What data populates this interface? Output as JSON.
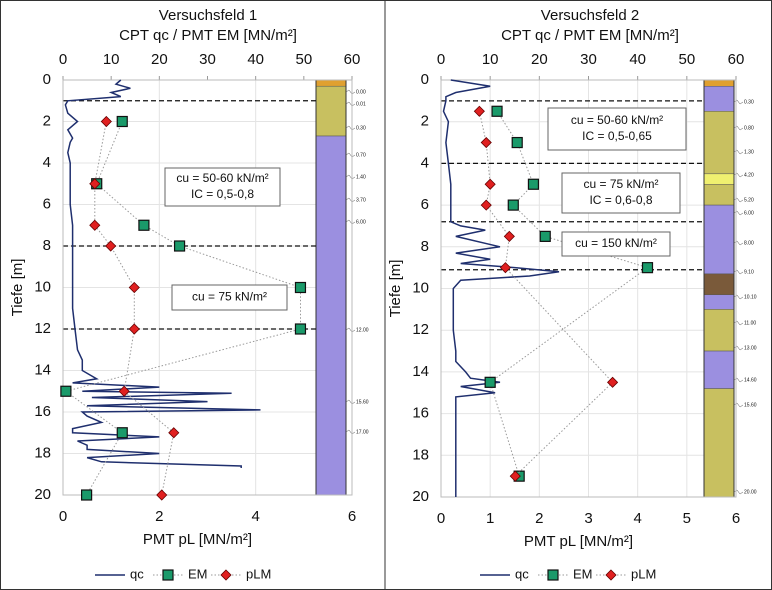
{
  "chart_data": [
    {
      "type": "line",
      "title": "Versuchsfeld 1",
      "x2label": "CPT qc / PMT EM [MN/m²]",
      "xlabel": "PMT pL [MN/m²]",
      "ylabel": "Tiefe [m]",
      "xlim": [
        0,
        6
      ],
      "xticks": [
        0,
        2,
        4,
        6
      ],
      "x2lim": [
        0,
        60
      ],
      "x2ticks": [
        0,
        10,
        20,
        30,
        40,
        50,
        60
      ],
      "ylim": [
        20,
        0
      ],
      "yticks": [
        0,
        2,
        4,
        6,
        8,
        10,
        12,
        14,
        16,
        18,
        20
      ],
      "grid": true,
      "series": [
        {
          "name": "qc",
          "color": "#1f2f6e",
          "axis": "x2",
          "style": "line",
          "y": [
            0,
            0.2,
            0.4,
            0.6,
            0.8,
            1.0,
            1.2,
            1.6,
            2,
            2.4,
            2.8,
            3,
            3.5,
            4,
            5,
            6,
            7,
            8,
            9,
            10,
            11,
            12,
            13,
            13.5,
            14,
            14.4,
            14.6,
            14.8,
            15,
            15.1,
            15.3,
            15.5,
            15.7,
            15.9,
            16,
            16.2,
            16.5,
            16.8,
            17,
            17.2,
            17.4,
            17.6,
            17.8,
            18,
            18.2,
            18.4,
            18.6,
            18.7
          ],
          "values": [
            12,
            11,
            14,
            10,
            12,
            1,
            0.5,
            1,
            3,
            1,
            2,
            1.5,
            1,
            1.5,
            1.5,
            1.5,
            2,
            2,
            2,
            2,
            2,
            2.5,
            3,
            4,
            4,
            7,
            2,
            20,
            4,
            35,
            6,
            30,
            5,
            41,
            4,
            5,
            8,
            2,
            2,
            20,
            3,
            5,
            5,
            20,
            5,
            8,
            37,
            37
          ]
        },
        {
          "name": "EM",
          "color": "#1a9a6a",
          "axis": "x2",
          "style": "square",
          "y": [
            2,
            5,
            7,
            8,
            10,
            12,
            15,
            17,
            20
          ],
          "values": [
            12.3,
            7.0,
            16.8,
            24.2,
            49.3,
            49.3,
            0.6,
            12.3,
            4.9
          ]
        },
        {
          "name": "pLM",
          "color": "#e02020",
          "axis": "x",
          "style": "diamond",
          "y": [
            2,
            5,
            7,
            8,
            10,
            12,
            15,
            17,
            20
          ],
          "values": [
            0.9,
            0.66,
            0.66,
            0.99,
            1.48,
            1.48,
            1.27,
            2.3,
            2.05
          ]
        }
      ],
      "hlines": [
        1,
        8,
        12
      ],
      "annotations": [
        {
          "lines": [
            "cu = 50-60 kN/m²",
            "IC = 0,5-0,8"
          ]
        },
        {
          "lines": [
            "cu = 75 kN/m²"
          ]
        }
      ],
      "soil_layers": [
        {
          "top": 0,
          "bottom": 0.3,
          "color": "#e0a030"
        },
        {
          "top": 0.3,
          "bottom": 2.7,
          "color": "#c8c060"
        },
        {
          "top": 2.7,
          "bottom": 20,
          "color": "#9b8fe0"
        }
      ],
      "column_labels": [
        "0.00",
        "0.01",
        "0.30",
        "0.70",
        "1.40",
        "3.70",
        "6.00",
        "12.00",
        "15.60",
        "17.00"
      ]
    },
    {
      "type": "line",
      "title": "Versuchsfeld 2",
      "x2label": "CPT qc / PMT EM [MN/m²]",
      "xlabel": "PMT pL [MN/m²]",
      "ylabel": "Tiefe [m]",
      "xlim": [
        0,
        6
      ],
      "xticks": [
        0,
        1,
        2,
        3,
        4,
        5,
        6
      ],
      "x2lim": [
        0,
        60
      ],
      "x2ticks": [
        0,
        10,
        20,
        30,
        40,
        50,
        60
      ],
      "ylim": [
        20,
        0
      ],
      "yticks": [
        0,
        2,
        4,
        6,
        8,
        10,
        12,
        14,
        16,
        18,
        20
      ],
      "grid": true,
      "series": [
        {
          "name": "qc",
          "color": "#1f2f6e",
          "axis": "x2",
          "style": "line",
          "y": [
            0,
            0.3,
            0.6,
            0.8,
            1,
            1.5,
            2,
            3,
            4,
            5,
            6,
            6.8,
            7,
            7.2,
            7.5,
            8,
            8.3,
            8.6,
            8.8,
            9,
            9.2,
            9.4,
            9.6,
            10,
            11,
            12,
            13,
            13.5,
            14,
            14.3,
            14.5,
            14.7,
            15,
            15.2,
            16,
            18,
            20
          ],
          "values": [
            2,
            10,
            3,
            1,
            1,
            0.5,
            1.5,
            1,
            1.5,
            2,
            2,
            2,
            4,
            9,
            3,
            12,
            3,
            10,
            4,
            15,
            24,
            18,
            4,
            2.5,
            2.5,
            2.5,
            3,
            3,
            5,
            6,
            12,
            4,
            11,
            3,
            3,
            3,
            3
          ]
        },
        {
          "name": "EM",
          "color": "#1a9a6a",
          "axis": "x2",
          "style": "square",
          "y": [
            1.5,
            3,
            5,
            6,
            7.5,
            9,
            14.5,
            19
          ],
          "values": [
            11.4,
            15.5,
            18.8,
            14.7,
            21.2,
            42,
            10,
            15.9
          ]
        },
        {
          "name": "pLM",
          "color": "#e02020",
          "axis": "x",
          "style": "diamond",
          "y": [
            1.5,
            3,
            5,
            6,
            7.5,
            9,
            14.5,
            19
          ],
          "values": [
            0.78,
            0.92,
            1.0,
            0.92,
            1.39,
            1.31,
            3.49,
            1.51
          ]
        }
      ],
      "hlines": [
        1,
        4,
        6.8,
        9.1
      ],
      "annotations": [
        {
          "lines": [
            "cu = 50-60 kN/m²",
            "IC = 0,5-0,65"
          ]
        },
        {
          "lines": [
            "cu = 75 kN/m²",
            "IC = 0,6-0,8"
          ]
        },
        {
          "lines": [
            "cu = 150 kN/m²"
          ]
        }
      ],
      "soil_layers": [
        {
          "top": 0,
          "bottom": 0.3,
          "color": "#e0a030"
        },
        {
          "top": 0.3,
          "bottom": 1.5,
          "color": "#9b8fe0"
        },
        {
          "top": 1.5,
          "bottom": 4.5,
          "color": "#c8c060"
        },
        {
          "top": 4.5,
          "bottom": 5.0,
          "color": "#f0f070"
        },
        {
          "top": 5.0,
          "bottom": 6.0,
          "color": "#c8c060"
        },
        {
          "top": 6.0,
          "bottom": 9.3,
          "color": "#9b8fe0"
        },
        {
          "top": 9.3,
          "bottom": 10.3,
          "color": "#7a5a3a"
        },
        {
          "top": 10.3,
          "bottom": 11.0,
          "color": "#9b8fe0"
        },
        {
          "top": 11.0,
          "bottom": 13.0,
          "color": "#c8c060"
        },
        {
          "top": 13.0,
          "bottom": 14.8,
          "color": "#9b8fe0"
        },
        {
          "top": 14.8,
          "bottom": 20,
          "color": "#c8c060"
        }
      ],
      "column_labels": [
        "0.30",
        "0.80",
        "1.30",
        "4.20",
        "5.20",
        "6.00",
        "8.00",
        "9.10",
        "10.10",
        "11.00",
        "13.00",
        "14.60",
        "15.60",
        "20.00"
      ]
    }
  ]
}
